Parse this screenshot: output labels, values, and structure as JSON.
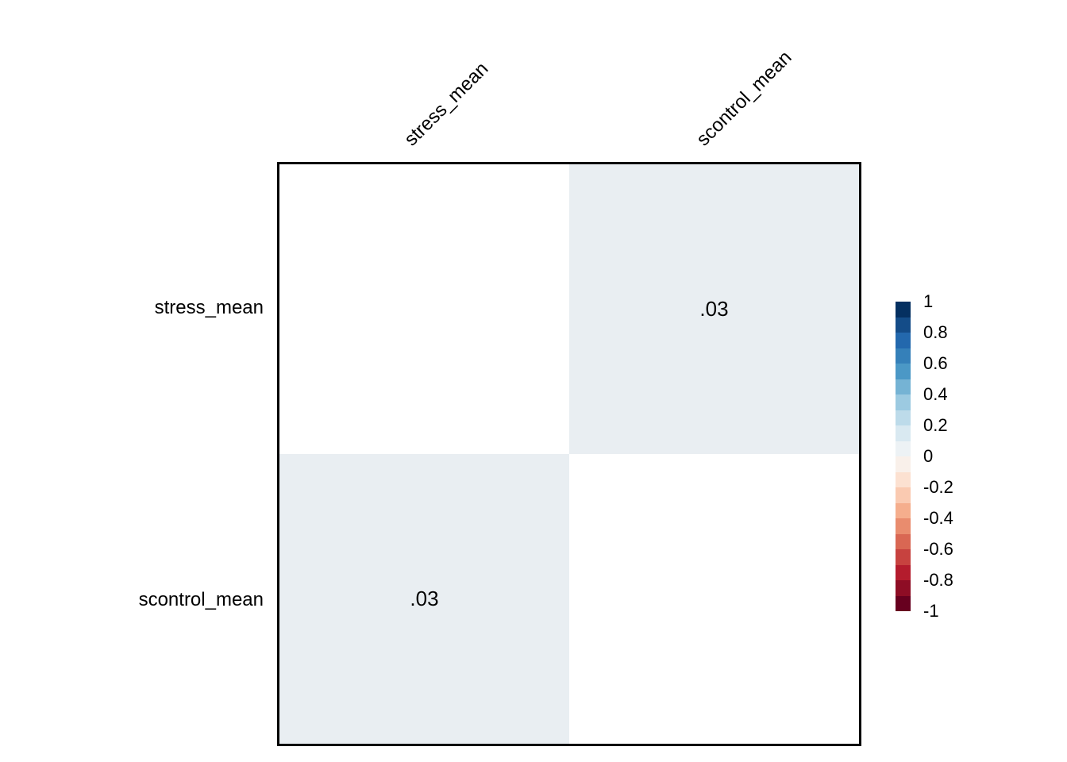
{
  "chart_data": {
    "type": "heatmap",
    "title": "",
    "variables": [
      "stress_mean",
      "scontrol_mean"
    ],
    "rows": [
      "stress_mean",
      "scontrol_mean"
    ],
    "columns": [
      "stress_mean",
      "scontrol_mean"
    ],
    "matrix": [
      [
        null,
        0.03
      ],
      [
        0.03,
        null
      ]
    ],
    "cells": [
      {
        "row": "stress_mean",
        "col": "stress_mean",
        "label": "",
        "fill": "#ffffff"
      },
      {
        "row": "stress_mean",
        "col": "scontrol_mean",
        "label": ".03",
        "fill": "#e9eef2"
      },
      {
        "row": "scontrol_mean",
        "col": "stress_mean",
        "label": ".03",
        "fill": "#e9eef2"
      },
      {
        "row": "scontrol_mean",
        "col": "scontrol_mean",
        "label": "",
        "fill": "#ffffff"
      }
    ],
    "colorbar": {
      "range": [
        -1,
        1
      ],
      "ticks": [
        "1",
        "0.8",
        "0.6",
        "0.4",
        "0.2",
        "0",
        "-0.2",
        "-0.4",
        "-0.6",
        "-0.8",
        "-1"
      ],
      "colors": [
        "#053061",
        "#144c88",
        "#2368ad",
        "#3580b9",
        "#4b98c6",
        "#75b3d4",
        "#9ccae1",
        "#bddbea",
        "#d9e9f1",
        "#edf2f5",
        "#f9f0ea",
        "#fce1d1",
        "#facab1",
        "#f5ae8d",
        "#e98c6e",
        "#d96753",
        "#c7423f",
        "#b41c2d",
        "#8e0d25",
        "#67001f"
      ],
      "position": "right"
    },
    "layout": {
      "grid": false,
      "border_color": "#000000",
      "text_color": "#000000",
      "background": "#ffffff"
    }
  }
}
